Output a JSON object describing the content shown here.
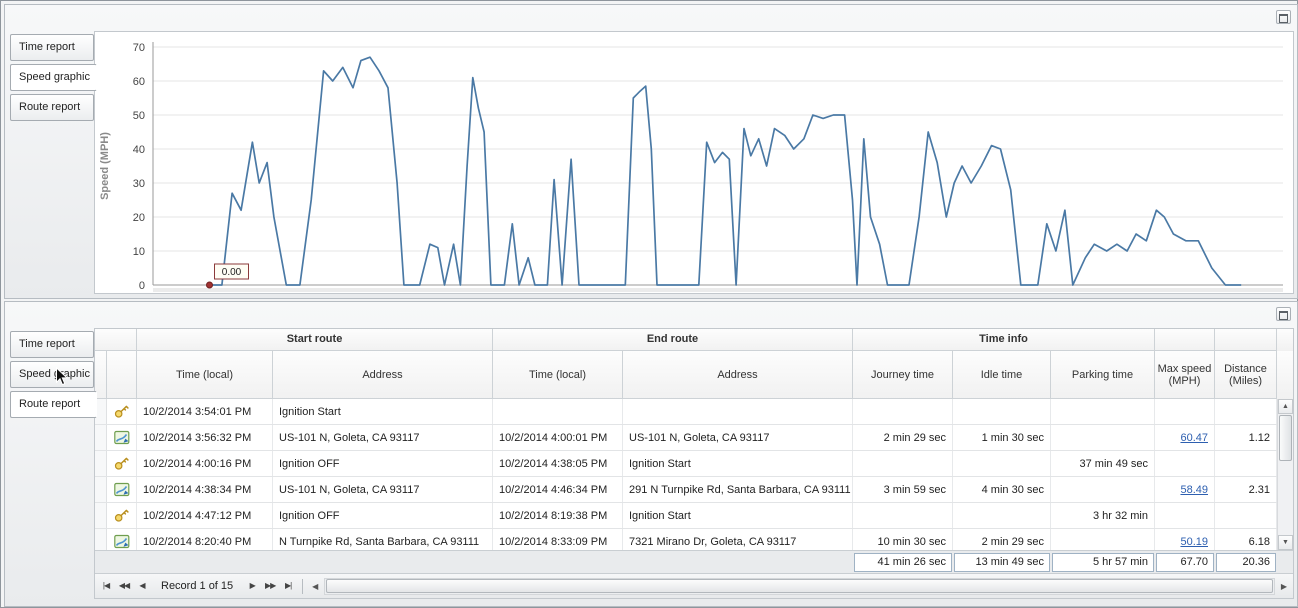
{
  "top_panel": {
    "tabs": [
      {
        "label": "Time report",
        "active": false
      },
      {
        "label": "Speed graphic",
        "active": true
      },
      {
        "label": "Route report",
        "active": false
      }
    ]
  },
  "chart_data": {
    "type": "line",
    "title": "",
    "xlabel": "",
    "ylabel": "Speed (MPH)",
    "ylim": [
      0,
      70
    ],
    "yticks": [
      0,
      10,
      20,
      30,
      40,
      50,
      60,
      70
    ],
    "grid": true,
    "legend_position": "none",
    "line_color": "#4a79a5",
    "annotation": {
      "text": "0.00",
      "x": 0.05,
      "y": 0
    },
    "series": [
      {
        "name": "Speed (MPH)",
        "points": [
          [
            0.05,
            0
          ],
          [
            0.061,
            0
          ],
          [
            0.07,
            27
          ],
          [
            0.078,
            22
          ],
          [
            0.088,
            42
          ],
          [
            0.094,
            30
          ],
          [
            0.101,
            36
          ],
          [
            0.107,
            20
          ],
          [
            0.118,
            0
          ],
          [
            0.13,
            0
          ],
          [
            0.14,
            25
          ],
          [
            0.151,
            63
          ],
          [
            0.159,
            60
          ],
          [
            0.168,
            64
          ],
          [
            0.177,
            58
          ],
          [
            0.184,
            66
          ],
          [
            0.192,
            67
          ],
          [
            0.2,
            63
          ],
          [
            0.208,
            58
          ],
          [
            0.216,
            30
          ],
          [
            0.222,
            0
          ],
          [
            0.236,
            0
          ],
          [
            0.245,
            12
          ],
          [
            0.252,
            11
          ],
          [
            0.258,
            0
          ],
          [
            0.266,
            12
          ],
          [
            0.272,
            0
          ],
          [
            0.278,
            35
          ],
          [
            0.283,
            61
          ],
          [
            0.288,
            52
          ],
          [
            0.293,
            45
          ],
          [
            0.299,
            0
          ],
          [
            0.311,
            0
          ],
          [
            0.318,
            18
          ],
          [
            0.324,
            0
          ],
          [
            0.332,
            8
          ],
          [
            0.338,
            0
          ],
          [
            0.349,
            0
          ],
          [
            0.355,
            31
          ],
          [
            0.362,
            0
          ],
          [
            0.37,
            37
          ],
          [
            0.377,
            0
          ],
          [
            0.396,
            0
          ],
          [
            0.418,
            0
          ],
          [
            0.425,
            55
          ],
          [
            0.431,
            57
          ],
          [
            0.436,
            58.5
          ],
          [
            0.441,
            40
          ],
          [
            0.446,
            0
          ],
          [
            0.483,
            0
          ],
          [
            0.49,
            42
          ],
          [
            0.497,
            36
          ],
          [
            0.504,
            39
          ],
          [
            0.51,
            37
          ],
          [
            0.516,
            0
          ],
          [
            0.523,
            46
          ],
          [
            0.529,
            38
          ],
          [
            0.536,
            43
          ],
          [
            0.543,
            35
          ],
          [
            0.55,
            46
          ],
          [
            0.559,
            44
          ],
          [
            0.567,
            40
          ],
          [
            0.576,
            43
          ],
          [
            0.584,
            50
          ],
          [
            0.593,
            49
          ],
          [
            0.602,
            50
          ],
          [
            0.612,
            50
          ],
          [
            0.619,
            25
          ],
          [
            0.623,
            0
          ],
          [
            0.629,
            43
          ],
          [
            0.635,
            20
          ],
          [
            0.643,
            12
          ],
          [
            0.65,
            0
          ],
          [
            0.669,
            0
          ],
          [
            0.678,
            20
          ],
          [
            0.686,
            45
          ],
          [
            0.694,
            36
          ],
          [
            0.702,
            20
          ],
          [
            0.709,
            30
          ],
          [
            0.716,
            35
          ],
          [
            0.724,
            30
          ],
          [
            0.733,
            35
          ],
          [
            0.742,
            41
          ],
          [
            0.75,
            40
          ],
          [
            0.759,
            28
          ],
          [
            0.768,
            0
          ],
          [
            0.783,
            0
          ],
          [
            0.791,
            18
          ],
          [
            0.799,
            10
          ],
          [
            0.807,
            22
          ],
          [
            0.814,
            0
          ],
          [
            0.825,
            8
          ],
          [
            0.833,
            12
          ],
          [
            0.844,
            10
          ],
          [
            0.853,
            12
          ],
          [
            0.862,
            10
          ],
          [
            0.87,
            15
          ],
          [
            0.879,
            13
          ],
          [
            0.888,
            22
          ],
          [
            0.895,
            20
          ],
          [
            0.903,
            15
          ],
          [
            0.914,
            13
          ],
          [
            0.925,
            13
          ],
          [
            0.937,
            5
          ],
          [
            0.949,
            0
          ],
          [
            0.963,
            0
          ]
        ]
      }
    ]
  },
  "bottom_panel": {
    "tabs": [
      {
        "label": "Time report",
        "active": false
      },
      {
        "label": "Speed graphic",
        "active": false
      },
      {
        "label": "Route report",
        "active": true
      }
    ],
    "scrollbar": {
      "up": "▲",
      "down": "▼",
      "left": "◀",
      "right": "▶"
    },
    "table": {
      "band_headers": [
        "Start route",
        "End route",
        "Time info"
      ],
      "columns": [
        "Time (local)",
        "Address",
        "Time (local)",
        "Address",
        "Journey time",
        "Idle time",
        "Parking time",
        "Max speed (MPH)",
        "Distance (Miles)"
      ],
      "rows": [
        {
          "icon": "key-icon",
          "start_time": "10/2/2014 3:54:01 PM",
          "start_address": "Ignition Start",
          "end_time": "",
          "end_address": "",
          "journey_time": "",
          "idle_time": "",
          "parking_time": "",
          "max_speed": "",
          "max_speed_link": false,
          "distance": ""
        },
        {
          "icon": "route-icon",
          "start_time": "10/2/2014 3:56:32 PM",
          "start_address": "US-101 N, Goleta, CA 93117",
          "end_time": "10/2/2014 4:00:01 PM",
          "end_address": "US-101 N, Goleta, CA 93117",
          "journey_time": "2 min 29 sec",
          "idle_time": "1 min 30 sec",
          "parking_time": "",
          "max_speed": "60.47",
          "max_speed_link": true,
          "distance": "1.12"
        },
        {
          "icon": "key-icon",
          "start_time": "10/2/2014 4:00:16 PM",
          "start_address": "Ignition OFF",
          "end_time": "10/2/2014 4:38:05 PM",
          "end_address": "Ignition Start",
          "journey_time": "",
          "idle_time": "",
          "parking_time": "37 min 49 sec",
          "max_speed": "",
          "max_speed_link": false,
          "distance": ""
        },
        {
          "icon": "route-icon",
          "start_time": "10/2/2014 4:38:34 PM",
          "start_address": "US-101 N, Goleta, CA 93117",
          "end_time": "10/2/2014 4:46:34 PM",
          "end_address": "291 N Turnpike Rd, Santa Barbara, CA 93111",
          "journey_time": "3 min 59 sec",
          "idle_time": "4 min 30 sec",
          "parking_time": "",
          "max_speed": "58.49",
          "max_speed_link": true,
          "distance": "2.31"
        },
        {
          "icon": "key-icon",
          "start_time": "10/2/2014 4:47:12 PM",
          "start_address": "Ignition OFF",
          "end_time": "10/2/2014 8:19:38 PM",
          "end_address": "Ignition Start",
          "journey_time": "",
          "idle_time": "",
          "parking_time": "3 hr 32 min",
          "max_speed": "",
          "max_speed_link": false,
          "distance": ""
        },
        {
          "icon": "route-icon",
          "start_time": "10/2/2014 8:20:40 PM",
          "start_address": "N Turnpike Rd, Santa Barbara, CA 93111",
          "end_time": "10/2/2014 8:33:09 PM",
          "end_address": "7321 Mirano Dr, Goleta, CA 93117",
          "journey_time": "10 min 30 sec",
          "idle_time": "2 min 29 sec",
          "parking_time": "",
          "max_speed": "50.19",
          "max_speed_link": true,
          "distance": "6.18"
        }
      ],
      "summary": {
        "journey_time": "41 min 26 sec",
        "idle_time": "13 min 49 sec",
        "parking_time": "5 hr 57 min",
        "max_speed": "67.70",
        "distance": "20.36"
      }
    },
    "navigator": {
      "record_label": "Record 1 of 15",
      "buttons_left": [
        "|◀",
        "◀◀",
        "◀"
      ],
      "buttons_right": [
        "▶",
        "▶▶",
        "▶|"
      ]
    }
  }
}
